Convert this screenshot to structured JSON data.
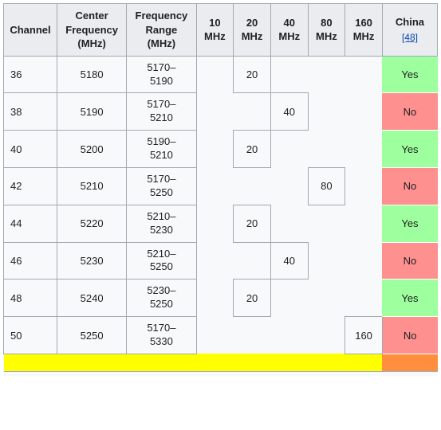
{
  "header": {
    "channel": "Channel",
    "center_freq_l1": "Center",
    "center_freq_l2": "Frequency",
    "center_freq_l3": "(MHz)",
    "freq_range_l1": "Frequency",
    "freq_range_l2": "Range",
    "freq_range_l3": "(MHz)",
    "bw10_l1": "10",
    "bw10_l2": "MHz",
    "bw20_l1": "20",
    "bw20_l2": "MHz",
    "bw40_l1": "40",
    "bw40_l2": "MHz",
    "bw80_l1": "80",
    "bw80_l2": "MHz",
    "bw160_l1": "160",
    "bw160_l2": "MHz",
    "china": "China",
    "china_ref": "[48]"
  },
  "rows": [
    {
      "ch": "36",
      "cf": "5180",
      "r1": "5170–",
      "r2": "5190",
      "bw": {
        "c": 20,
        "v": "20"
      },
      "cn": {
        "v": "Yes",
        "cls": "yes"
      }
    },
    {
      "ch": "38",
      "cf": "5190",
      "r1": "5170–",
      "r2": "5210",
      "bw": {
        "c": 40,
        "v": "40"
      },
      "cn": {
        "v": "No",
        "cls": "no"
      }
    },
    {
      "ch": "40",
      "cf": "5200",
      "r1": "5190–",
      "r2": "5210",
      "bw": {
        "c": 20,
        "v": "20"
      },
      "cn": {
        "v": "Yes",
        "cls": "yes"
      }
    },
    {
      "ch": "42",
      "cf": "5210",
      "r1": "5170–",
      "r2": "5250",
      "bw": {
        "c": 80,
        "v": "80"
      },
      "cn": {
        "v": "No",
        "cls": "no"
      }
    },
    {
      "ch": "44",
      "cf": "5220",
      "r1": "5210–",
      "r2": "5230",
      "bw": {
        "c": 20,
        "v": "20"
      },
      "cn": {
        "v": "Yes",
        "cls": "yes"
      }
    },
    {
      "ch": "46",
      "cf": "5230",
      "r1": "5210–",
      "r2": "5250",
      "bw": {
        "c": 40,
        "v": "40"
      },
      "cn": {
        "v": "No",
        "cls": "no"
      }
    },
    {
      "ch": "48",
      "cf": "5240",
      "r1": "5230–",
      "r2": "5250",
      "bw": {
        "c": 20,
        "v": "20"
      },
      "cn": {
        "v": "Yes",
        "cls": "yes"
      }
    },
    {
      "ch": "50",
      "cf": "5250",
      "r1": "5170–",
      "r2": "5330",
      "bw": {
        "c": 160,
        "v": "160"
      },
      "cn": {
        "v": "No",
        "cls": "no"
      }
    }
  ],
  "bw_cols": [
    10,
    20,
    40,
    80,
    160
  ],
  "colors": {
    "yes_bg": "#9eff9e",
    "no_bg": "#ff9090",
    "header_bg": "#eaecf0",
    "border": "#a2a9b1",
    "highlight": "#ffff00",
    "highlight_cn": "#ff8f3e",
    "link": "#0645ad"
  }
}
